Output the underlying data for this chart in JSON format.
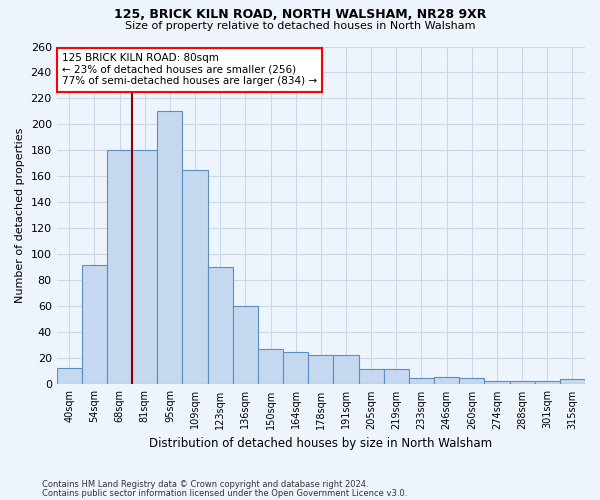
{
  "title1": "125, BRICK KILN ROAD, NORTH WALSHAM, NR28 9XR",
  "title2": "Size of property relative to detached houses in North Walsham",
  "xlabel": "Distribution of detached houses by size in North Walsham",
  "ylabel": "Number of detached properties",
  "categories": [
    "40sqm",
    "54sqm",
    "68sqm",
    "81sqm",
    "95sqm",
    "109sqm",
    "123sqm",
    "136sqm",
    "150sqm",
    "164sqm",
    "178sqm",
    "191sqm",
    "205sqm",
    "219sqm",
    "233sqm",
    "246sqm",
    "260sqm",
    "274sqm",
    "288sqm",
    "301sqm",
    "315sqm"
  ],
  "values": [
    13,
    92,
    180,
    180,
    210,
    165,
    90,
    60,
    27,
    25,
    23,
    23,
    12,
    12,
    5,
    6,
    5,
    3,
    3,
    3,
    4
  ],
  "bar_color": "#c5d8f0",
  "bar_edge_color": "#5a8fc2",
  "grid_color": "#c8d8e8",
  "background_color": "#eef4fb",
  "property_line_x": 2.5,
  "annotation_text": "125 BRICK KILN ROAD: 80sqm\n← 23% of detached houses are smaller (256)\n77% of semi-detached houses are larger (834) →",
  "annotation_box_color": "white",
  "annotation_box_edge": "red",
  "vline_color": "#8b0000",
  "footnote1": "Contains HM Land Registry data © Crown copyright and database right 2024.",
  "footnote2": "Contains public sector information licensed under the Open Government Licence v3.0.",
  "ylim": [
    0,
    260
  ],
  "yticks": [
    0,
    20,
    40,
    60,
    80,
    100,
    120,
    140,
    160,
    180,
    200,
    220,
    240,
    260
  ]
}
